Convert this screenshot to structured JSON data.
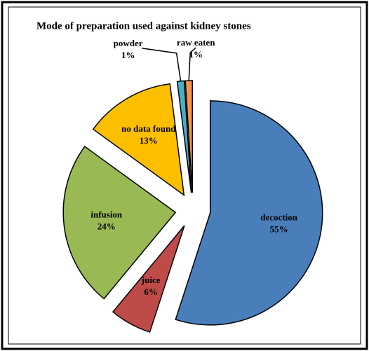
{
  "chart_data": {
    "type": "pie",
    "title": "Mode of preparation used against kidney stones",
    "categories": [
      "decoction",
      "juice",
      "infusion",
      "no data found",
      "powder",
      "raw eaten"
    ],
    "values": [
      55,
      6,
      24,
      13,
      1,
      1
    ],
    "value_labels": [
      "55%",
      "6%",
      "24%",
      "13%",
      "1%",
      "1%"
    ],
    "colors": [
      "#4a7ebb",
      "#be4b48",
      "#98b954",
      "#fcbf00",
      "#4bacc6",
      "#f79646"
    ]
  }
}
